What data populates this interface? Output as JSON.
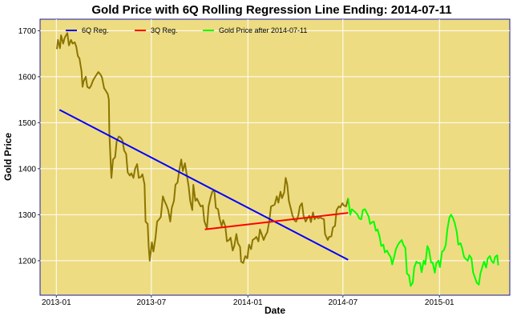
{
  "chart_data": {
    "type": "line",
    "title": "Gold Price with 6Q Rolling Regression Line Ending: 2014-07-11",
    "xlabel": "Date",
    "ylabel": "Gold Price",
    "x_axis": {
      "type": "date",
      "range": [
        "2012-12-01",
        "2015-05-15"
      ]
    },
    "x_ticks": [
      {
        "date": "2013-01-01",
        "label": "2013-01"
      },
      {
        "date": "2013-07-01",
        "label": "2013-07"
      },
      {
        "date": "2014-01-01",
        "label": "2014-01"
      },
      {
        "date": "2014-07-01",
        "label": "2014-07"
      },
      {
        "date": "2015-01-01",
        "label": "2015-01"
      }
    ],
    "ylim": [
      1125,
      1725
    ],
    "y_ticks": [
      1200,
      1300,
      1400,
      1500,
      1600,
      1700
    ],
    "grid": true,
    "legend_position": "top",
    "colors": {
      "background": "#EEDC82",
      "grid": "#FFFFFF",
      "border": "#1A1AA0",
      "price_before": "#8B7500",
      "price_after": "#00FF00",
      "reg6q": "#0000FF",
      "reg3q": "#FF0000"
    },
    "series": [
      {
        "name": "Gold Price",
        "color": "#8B7500",
        "points": [
          [
            "2013-01-02",
            1660
          ],
          [
            "2013-01-04",
            1680
          ],
          [
            "2013-01-08",
            1662
          ],
          [
            "2013-01-10",
            1690
          ],
          [
            "2013-01-14",
            1672
          ],
          [
            "2013-01-17",
            1685
          ],
          [
            "2013-01-22",
            1695
          ],
          [
            "2013-01-25",
            1668
          ],
          [
            "2013-01-29",
            1680
          ],
          [
            "2013-02-01",
            1672
          ],
          [
            "2013-02-05",
            1675
          ],
          [
            "2013-02-08",
            1665
          ],
          [
            "2013-02-11",
            1645
          ],
          [
            "2013-02-14",
            1640
          ],
          [
            "2013-02-18",
            1612
          ],
          [
            "2013-02-20",
            1578
          ],
          [
            "2013-02-22",
            1590
          ],
          [
            "2013-02-26",
            1600
          ],
          [
            "2013-03-01",
            1578
          ],
          [
            "2013-03-05",
            1575
          ],
          [
            "2013-03-08",
            1580
          ],
          [
            "2013-03-12",
            1592
          ],
          [
            "2013-03-15",
            1598
          ],
          [
            "2013-03-19",
            1605
          ],
          [
            "2013-03-22",
            1610
          ],
          [
            "2013-03-26",
            1605
          ],
          [
            "2013-03-29",
            1598
          ],
          [
            "2013-04-02",
            1575
          ],
          [
            "2013-04-05",
            1570
          ],
          [
            "2013-04-09",
            1562
          ],
          [
            "2013-04-11",
            1550
          ],
          [
            "2013-04-12",
            1480
          ],
          [
            "2013-04-15",
            1400
          ],
          [
            "2013-04-16",
            1380
          ],
          [
            "2013-04-19",
            1420
          ],
          [
            "2013-04-23",
            1425
          ],
          [
            "2013-04-26",
            1460
          ],
          [
            "2013-04-30",
            1470
          ],
          [
            "2013-05-03",
            1468
          ],
          [
            "2013-05-07",
            1462
          ],
          [
            "2013-05-10",
            1440
          ],
          [
            "2013-05-14",
            1432
          ],
          [
            "2013-05-17",
            1392
          ],
          [
            "2013-05-21",
            1385
          ],
          [
            "2013-05-24",
            1390
          ],
          [
            "2013-05-28",
            1380
          ],
          [
            "2013-05-31",
            1400
          ],
          [
            "2013-06-04",
            1410
          ],
          [
            "2013-06-07",
            1380
          ],
          [
            "2013-06-11",
            1382
          ],
          [
            "2013-06-14",
            1388
          ],
          [
            "2013-06-18",
            1366
          ],
          [
            "2013-06-20",
            1285
          ],
          [
            "2013-06-24",
            1280
          ],
          [
            "2013-06-26",
            1230
          ],
          [
            "2013-06-28",
            1200
          ],
          [
            "2013-07-02",
            1240
          ],
          [
            "2013-07-05",
            1220
          ],
          [
            "2013-07-09",
            1250
          ],
          [
            "2013-07-12",
            1285
          ],
          [
            "2013-07-16",
            1290
          ],
          [
            "2013-07-19",
            1295
          ],
          [
            "2013-07-23",
            1340
          ],
          [
            "2013-07-26",
            1330
          ],
          [
            "2013-07-30",
            1320
          ],
          [
            "2013-08-02",
            1310
          ],
          [
            "2013-08-06",
            1285
          ],
          [
            "2013-08-09",
            1315
          ],
          [
            "2013-08-13",
            1330
          ],
          [
            "2013-08-16",
            1365
          ],
          [
            "2013-08-20",
            1370
          ],
          [
            "2013-08-23",
            1395
          ],
          [
            "2013-08-27",
            1420
          ],
          [
            "2013-08-30",
            1395
          ],
          [
            "2013-09-03",
            1412
          ],
          [
            "2013-09-06",
            1390
          ],
          [
            "2013-09-10",
            1362
          ],
          [
            "2013-09-13",
            1330
          ],
          [
            "2013-09-17",
            1310
          ],
          [
            "2013-09-19",
            1365
          ],
          [
            "2013-09-23",
            1330
          ],
          [
            "2013-09-26",
            1335
          ],
          [
            "2013-09-30",
            1325
          ],
          [
            "2013-10-03",
            1318
          ],
          [
            "2013-10-07",
            1320
          ],
          [
            "2013-10-10",
            1286
          ],
          [
            "2013-10-15",
            1270
          ],
          [
            "2013-10-18",
            1318
          ],
          [
            "2013-10-22",
            1338
          ],
          [
            "2013-10-25",
            1350
          ],
          [
            "2013-10-29",
            1352
          ],
          [
            "2013-11-01",
            1315
          ],
          [
            "2013-11-05",
            1312
          ],
          [
            "2013-11-08",
            1292
          ],
          [
            "2013-11-12",
            1275
          ],
          [
            "2013-11-15",
            1288
          ],
          [
            "2013-11-19",
            1275
          ],
          [
            "2013-11-22",
            1242
          ],
          [
            "2013-11-26",
            1245
          ],
          [
            "2013-11-29",
            1250
          ],
          [
            "2013-12-03",
            1222
          ],
          [
            "2013-12-06",
            1232
          ],
          [
            "2013-12-10",
            1258
          ],
          [
            "2013-12-13",
            1238
          ],
          [
            "2013-12-17",
            1230
          ],
          [
            "2013-12-19",
            1198
          ],
          [
            "2013-12-23",
            1195
          ],
          [
            "2013-12-27",
            1210
          ],
          [
            "2013-12-31",
            1205
          ],
          [
            "2014-01-03",
            1235
          ],
          [
            "2014-01-07",
            1225
          ],
          [
            "2014-01-10",
            1245
          ],
          [
            "2014-01-14",
            1248
          ],
          [
            "2014-01-17",
            1252
          ],
          [
            "2014-01-21",
            1242
          ],
          [
            "2014-01-24",
            1268
          ],
          [
            "2014-01-28",
            1255
          ],
          [
            "2014-01-31",
            1245
          ],
          [
            "2014-02-04",
            1256
          ],
          [
            "2014-02-07",
            1262
          ],
          [
            "2014-02-11",
            1288
          ],
          [
            "2014-02-14",
            1318
          ],
          [
            "2014-02-18",
            1320
          ],
          [
            "2014-02-21",
            1322
          ],
          [
            "2014-02-25",
            1340
          ],
          [
            "2014-02-28",
            1326
          ],
          [
            "2014-03-04",
            1350
          ],
          [
            "2014-03-07",
            1336
          ],
          [
            "2014-03-11",
            1348
          ],
          [
            "2014-03-14",
            1380
          ],
          [
            "2014-03-17",
            1365
          ],
          [
            "2014-03-20",
            1330
          ],
          [
            "2014-03-24",
            1312
          ],
          [
            "2014-03-27",
            1298
          ],
          [
            "2014-03-31",
            1287
          ],
          [
            "2014-04-03",
            1285
          ],
          [
            "2014-04-07",
            1298
          ],
          [
            "2014-04-10",
            1318
          ],
          [
            "2014-04-14",
            1325
          ],
          [
            "2014-04-17",
            1298
          ],
          [
            "2014-04-21",
            1285
          ],
          [
            "2014-04-24",
            1292
          ],
          [
            "2014-04-28",
            1298
          ],
          [
            "2014-05-01",
            1284
          ],
          [
            "2014-05-05",
            1305
          ],
          [
            "2014-05-08",
            1290
          ],
          [
            "2014-05-12",
            1296
          ],
          [
            "2014-05-15",
            1292
          ],
          [
            "2014-05-19",
            1294
          ],
          [
            "2014-05-22",
            1292
          ],
          [
            "2014-05-26",
            1290
          ],
          [
            "2014-05-28",
            1258
          ],
          [
            "2014-06-02",
            1245
          ],
          [
            "2014-06-05",
            1252
          ],
          [
            "2014-06-09",
            1253
          ],
          [
            "2014-06-12",
            1272
          ],
          [
            "2014-06-16",
            1276
          ],
          [
            "2014-06-19",
            1310
          ],
          [
            "2014-06-23",
            1318
          ],
          [
            "2014-06-26",
            1316
          ],
          [
            "2014-06-30",
            1325
          ],
          [
            "2014-07-03",
            1320
          ],
          [
            "2014-07-07",
            1318
          ],
          [
            "2014-07-09",
            1326
          ],
          [
            "2014-07-11",
            1336
          ]
        ]
      },
      {
        "name": "Gold Price after 2014-07-11",
        "color": "#00FF00",
        "points": [
          [
            "2014-07-11",
            1336
          ],
          [
            "2014-07-15",
            1300
          ],
          [
            "2014-07-18",
            1312
          ],
          [
            "2014-07-22",
            1308
          ],
          [
            "2014-07-25",
            1305
          ],
          [
            "2014-07-29",
            1300
          ],
          [
            "2014-08-01",
            1292
          ],
          [
            "2014-08-05",
            1290
          ],
          [
            "2014-08-08",
            1310
          ],
          [
            "2014-08-12",
            1312
          ],
          [
            "2014-08-15",
            1305
          ],
          [
            "2014-08-19",
            1296
          ],
          [
            "2014-08-22",
            1280
          ],
          [
            "2014-08-26",
            1284
          ],
          [
            "2014-08-29",
            1285
          ],
          [
            "2014-09-02",
            1265
          ],
          [
            "2014-09-05",
            1268
          ],
          [
            "2014-09-09",
            1252
          ],
          [
            "2014-09-12",
            1232
          ],
          [
            "2014-09-16",
            1235
          ],
          [
            "2014-09-19",
            1218
          ],
          [
            "2014-09-23",
            1222
          ],
          [
            "2014-09-26",
            1215
          ],
          [
            "2014-09-30",
            1208
          ],
          [
            "2014-10-03",
            1192
          ],
          [
            "2014-10-07",
            1210
          ],
          [
            "2014-10-10",
            1225
          ],
          [
            "2014-10-14",
            1235
          ],
          [
            "2014-10-17",
            1240
          ],
          [
            "2014-10-21",
            1245
          ],
          [
            "2014-10-24",
            1235
          ],
          [
            "2014-10-28",
            1228
          ],
          [
            "2014-10-31",
            1172
          ],
          [
            "2014-11-04",
            1168
          ],
          [
            "2014-11-07",
            1145
          ],
          [
            "2014-11-11",
            1152
          ],
          [
            "2014-11-14",
            1185
          ],
          [
            "2014-11-18",
            1198
          ],
          [
            "2014-11-21",
            1195
          ],
          [
            "2014-11-25",
            1195
          ],
          [
            "2014-11-28",
            1175
          ],
          [
            "2014-12-02",
            1200
          ],
          [
            "2014-12-05",
            1192
          ],
          [
            "2014-12-09",
            1232
          ],
          [
            "2014-12-12",
            1224
          ],
          [
            "2014-12-16",
            1196
          ],
          [
            "2014-12-19",
            1196
          ],
          [
            "2014-12-23",
            1174
          ],
          [
            "2014-12-26",
            1195
          ],
          [
            "2014-12-30",
            1200
          ],
          [
            "2015-01-02",
            1186
          ],
          [
            "2015-01-06",
            1220
          ],
          [
            "2015-01-09",
            1222
          ],
          [
            "2015-01-13",
            1234
          ],
          [
            "2015-01-16",
            1268
          ],
          [
            "2015-01-20",
            1294
          ],
          [
            "2015-01-23",
            1300
          ],
          [
            "2015-01-27",
            1292
          ],
          [
            "2015-01-30",
            1282
          ],
          [
            "2015-02-03",
            1262
          ],
          [
            "2015-02-06",
            1235
          ],
          [
            "2015-02-10",
            1238
          ],
          [
            "2015-02-13",
            1228
          ],
          [
            "2015-02-17",
            1208
          ],
          [
            "2015-02-20",
            1204
          ],
          [
            "2015-02-24",
            1200
          ],
          [
            "2015-02-27",
            1212
          ],
          [
            "2015-03-03",
            1205
          ],
          [
            "2015-03-06",
            1175
          ],
          [
            "2015-03-10",
            1162
          ],
          [
            "2015-03-13",
            1152
          ],
          [
            "2015-03-17",
            1148
          ],
          [
            "2015-03-20",
            1172
          ],
          [
            "2015-03-24",
            1188
          ],
          [
            "2015-03-27",
            1198
          ],
          [
            "2015-03-31",
            1185
          ],
          [
            "2015-04-03",
            1205
          ],
          [
            "2015-04-07",
            1210
          ],
          [
            "2015-04-10",
            1200
          ],
          [
            "2015-04-14",
            1195
          ],
          [
            "2015-04-17",
            1208
          ],
          [
            "2015-04-21",
            1212
          ],
          [
            "2015-04-23",
            1190
          ]
        ]
      },
      {
        "name": "6Q Reg.",
        "color": "#0000FF",
        "points": [
          [
            "2013-01-07",
            1528
          ],
          [
            "2014-07-11",
            1202
          ]
        ]
      },
      {
        "name": "3Q Reg.",
        "color": "#FF0000",
        "points": [
          [
            "2013-10-11",
            1268
          ],
          [
            "2014-07-11",
            1304
          ]
        ]
      }
    ],
    "legend": [
      {
        "label": "6Q Reg.",
        "color": "#0000FF"
      },
      {
        "label": "3Q Reg.",
        "color": "#FF0000"
      },
      {
        "label": "Gold Price after 2014-07-11",
        "color": "#00FF00"
      }
    ]
  }
}
